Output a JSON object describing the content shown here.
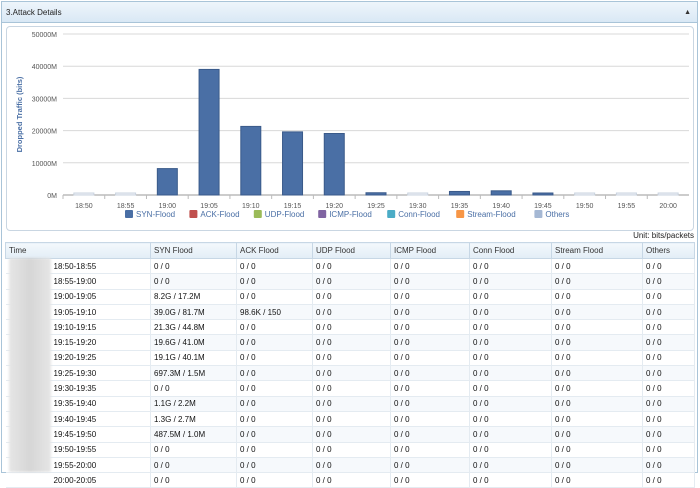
{
  "panel": {
    "title": "3.Attack Details",
    "collapse_glyph": "▲"
  },
  "chart_data": {
    "type": "bar",
    "ylabel": "Dropped Traffic (bits)",
    "yticks": [
      "0M",
      "10000M",
      "20000M",
      "30000M",
      "40000M",
      "50000M"
    ],
    "ylim": [
      0,
      50000
    ],
    "categories": [
      "18:50",
      "18:55",
      "19:00",
      "19:05",
      "19:10",
      "19:15",
      "19:20",
      "19:25",
      "19:30",
      "19:35",
      "19:40",
      "19:45",
      "19:50",
      "19:55",
      "20:00"
    ],
    "series": [
      {
        "name": "SYN-Flood",
        "color": "#4a6fa5",
        "values": [
          0,
          0,
          8200,
          39000,
          21300,
          19600,
          19100,
          697,
          0,
          1100,
          1300,
          487,
          0,
          0,
          0
        ]
      },
      {
        "name": "ACK-Flood",
        "color": "#c0504d",
        "values": [
          0,
          0,
          0,
          0.0986,
          0,
          0,
          0,
          0,
          0,
          0,
          0,
          0,
          0,
          0,
          0
        ]
      },
      {
        "name": "UDP-Flood",
        "color": "#9bbb59",
        "values": [
          0,
          0,
          0,
          0,
          0,
          0,
          0,
          0,
          0,
          0,
          0,
          0,
          0,
          0,
          0
        ]
      },
      {
        "name": "ICMP-Flood",
        "color": "#8064a2",
        "values": [
          0,
          0,
          0,
          0,
          0,
          0,
          0,
          0,
          0,
          0,
          0,
          0,
          0,
          0,
          0
        ]
      },
      {
        "name": "Conn-Flood",
        "color": "#4bacc6",
        "values": [
          0,
          0,
          0,
          0,
          0,
          0,
          0,
          0,
          0,
          0,
          0,
          0,
          0,
          0,
          0
        ]
      },
      {
        "name": "Stream-Flood",
        "color": "#f79646",
        "values": [
          0,
          0,
          0,
          0,
          0,
          0,
          0,
          0,
          0,
          0,
          0,
          0,
          0,
          0,
          0
        ]
      },
      {
        "name": "Others",
        "color": "#a5b8d4",
        "values": [
          0,
          0,
          0,
          0,
          0,
          0,
          0,
          0,
          0,
          0,
          0,
          0,
          0,
          0,
          0
        ]
      }
    ],
    "grid": true,
    "legend": "bottom"
  },
  "unit_label": "Unit: bits/packets",
  "table": {
    "headers": [
      "Time",
      "SYN Flood",
      "ACK Flood",
      "UDP Flood",
      "ICMP Flood",
      "Conn Flood",
      "Stream Flood",
      "Others"
    ],
    "rows": [
      [
        "18:50-18:55",
        "0 / 0",
        "0 / 0",
        "0 / 0",
        "0 / 0",
        "0 / 0",
        "0 / 0",
        "0 / 0"
      ],
      [
        "18:55-19:00",
        "0 / 0",
        "0 / 0",
        "0 / 0",
        "0 / 0",
        "0 / 0",
        "0 / 0",
        "0 / 0"
      ],
      [
        "19:00-19:05",
        "8.2G / 17.2M",
        "0 / 0",
        "0 / 0",
        "0 / 0",
        "0 / 0",
        "0 / 0",
        "0 / 0"
      ],
      [
        "19:05-19:10",
        "39.0G / 81.7M",
        "98.6K / 150",
        "0 / 0",
        "0 / 0",
        "0 / 0",
        "0 / 0",
        "0 / 0"
      ],
      [
        "19:10-19:15",
        "21.3G / 44.8M",
        "0 / 0",
        "0 / 0",
        "0 / 0",
        "0 / 0",
        "0 / 0",
        "0 / 0"
      ],
      [
        "19:15-19:20",
        "19.6G / 41.0M",
        "0 / 0",
        "0 / 0",
        "0 / 0",
        "0 / 0",
        "0 / 0",
        "0 / 0"
      ],
      [
        "19:20-19:25",
        "19.1G / 40.1M",
        "0 / 0",
        "0 / 0",
        "0 / 0",
        "0 / 0",
        "0 / 0",
        "0 / 0"
      ],
      [
        "19:25-19:30",
        "697.3M / 1.5M",
        "0 / 0",
        "0 / 0",
        "0 / 0",
        "0 / 0",
        "0 / 0",
        "0 / 0"
      ],
      [
        "19:30-19:35",
        "0 / 0",
        "0 / 0",
        "0 / 0",
        "0 / 0",
        "0 / 0",
        "0 / 0",
        "0 / 0"
      ],
      [
        "19:35-19:40",
        "1.1G / 2.2M",
        "0 / 0",
        "0 / 0",
        "0 / 0",
        "0 / 0",
        "0 / 0",
        "0 / 0"
      ],
      [
        "19:40-19:45",
        "1.3G / 2.7M",
        "0 / 0",
        "0 / 0",
        "0 / 0",
        "0 / 0",
        "0 / 0",
        "0 / 0"
      ],
      [
        "19:45-19:50",
        "487.5M / 1.0M",
        "0 / 0",
        "0 / 0",
        "0 / 0",
        "0 / 0",
        "0 / 0",
        "0 / 0"
      ],
      [
        "19:50-19:55",
        "0 / 0",
        "0 / 0",
        "0 / 0",
        "0 / 0",
        "0 / 0",
        "0 / 0",
        "0 / 0"
      ],
      [
        "19:55-20:00",
        "0 / 0",
        "0 / 0",
        "0 / 0",
        "0 / 0",
        "0 / 0",
        "0 / 0",
        "0 / 0"
      ],
      [
        "20:00-20:05",
        "0 / 0",
        "0 / 0",
        "0 / 0",
        "0 / 0",
        "0 / 0",
        "0 / 0",
        "0 / 0"
      ]
    ]
  }
}
